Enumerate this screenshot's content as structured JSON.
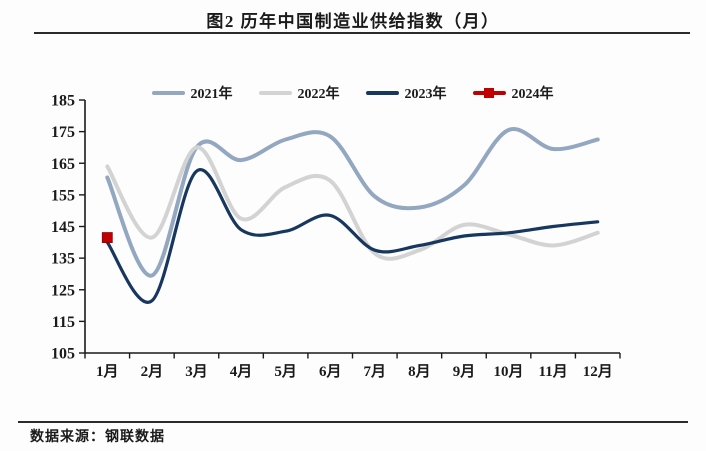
{
  "page": {
    "title": "图2 历年中国制造业供给指数（月）",
    "source": "数据来源：钢联数据"
  },
  "chart_data": {
    "type": "line",
    "title": "图2 历年中国制造业供给指数（月）",
    "xlabel": "",
    "ylabel": "",
    "ylim": [
      105,
      185
    ],
    "yticks": [
      105,
      115,
      125,
      135,
      145,
      155,
      165,
      175,
      185
    ],
    "grid": false,
    "legend_position": "top",
    "categories": [
      "1月",
      "2月",
      "3月",
      "4月",
      "5月",
      "6月",
      "7月",
      "8月",
      "9月",
      "10月",
      "11月",
      "12月"
    ],
    "series": [
      {
        "name": "2021年",
        "color": "#93a7c0",
        "marker": "none",
        "values": [
          160.5,
          129.5,
          170,
          166,
          172.5,
          173.5,
          154.5,
          151,
          158,
          175.5,
          169.5,
          172.5
        ]
      },
      {
        "name": "2022年",
        "color": "#d3d3d3",
        "marker": "none",
        "values": [
          164,
          141.5,
          170,
          147.5,
          157.5,
          159.5,
          136.5,
          137.5,
          145.5,
          142.5,
          139,
          143
        ]
      },
      {
        "name": "2023年",
        "color": "#17375e",
        "marker": "none",
        "values": [
          140,
          121.5,
          162.5,
          144,
          143.5,
          148.5,
          137.5,
          139,
          142,
          143,
          145,
          146.5
        ]
      },
      {
        "name": "2024年",
        "color": "#c00000",
        "marker": "square",
        "values": [
          141.5,
          null,
          null,
          null,
          null,
          null,
          null,
          null,
          null,
          null,
          null,
          null
        ]
      }
    ]
  }
}
